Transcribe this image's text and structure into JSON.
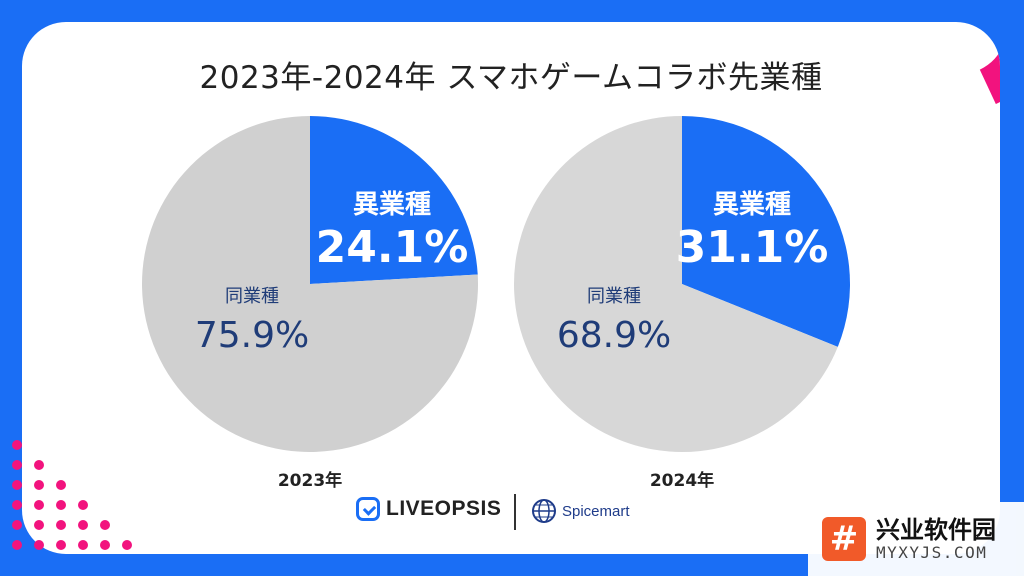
{
  "title": "2023年-2024年 スマホゲームコラボ先業種",
  "colors": {
    "background": "#1a6ef5",
    "accent_pink": "#f2137e",
    "slice_primary": "#1a6ef5",
    "slice_secondary": "#d0d0d0",
    "label_dark": "#1f3c78"
  },
  "chart_data": [
    {
      "type": "pie",
      "caption": "2023年",
      "slices": [
        {
          "label": "異業種",
          "value": 24.1,
          "display": "24.1%",
          "color": "#1a6ef5"
        },
        {
          "label": "同業種",
          "value": 75.9,
          "display": "75.9%",
          "color": "#d0d0d0"
        }
      ]
    },
    {
      "type": "pie",
      "caption": "2024年",
      "slices": [
        {
          "label": "異業種",
          "value": 31.1,
          "display": "31.1%",
          "color": "#1a6ef5"
        },
        {
          "label": "同業種",
          "value": 68.9,
          "display": "68.9%",
          "color": "#d7d7d7"
        }
      ]
    }
  ],
  "logos": {
    "liveopsis": "LIVEOPSIS",
    "spicemart": "Spicemart"
  },
  "watermark": {
    "icon": "#",
    "cn": "兴业软件园",
    "en": "MYXYJS.COM"
  }
}
